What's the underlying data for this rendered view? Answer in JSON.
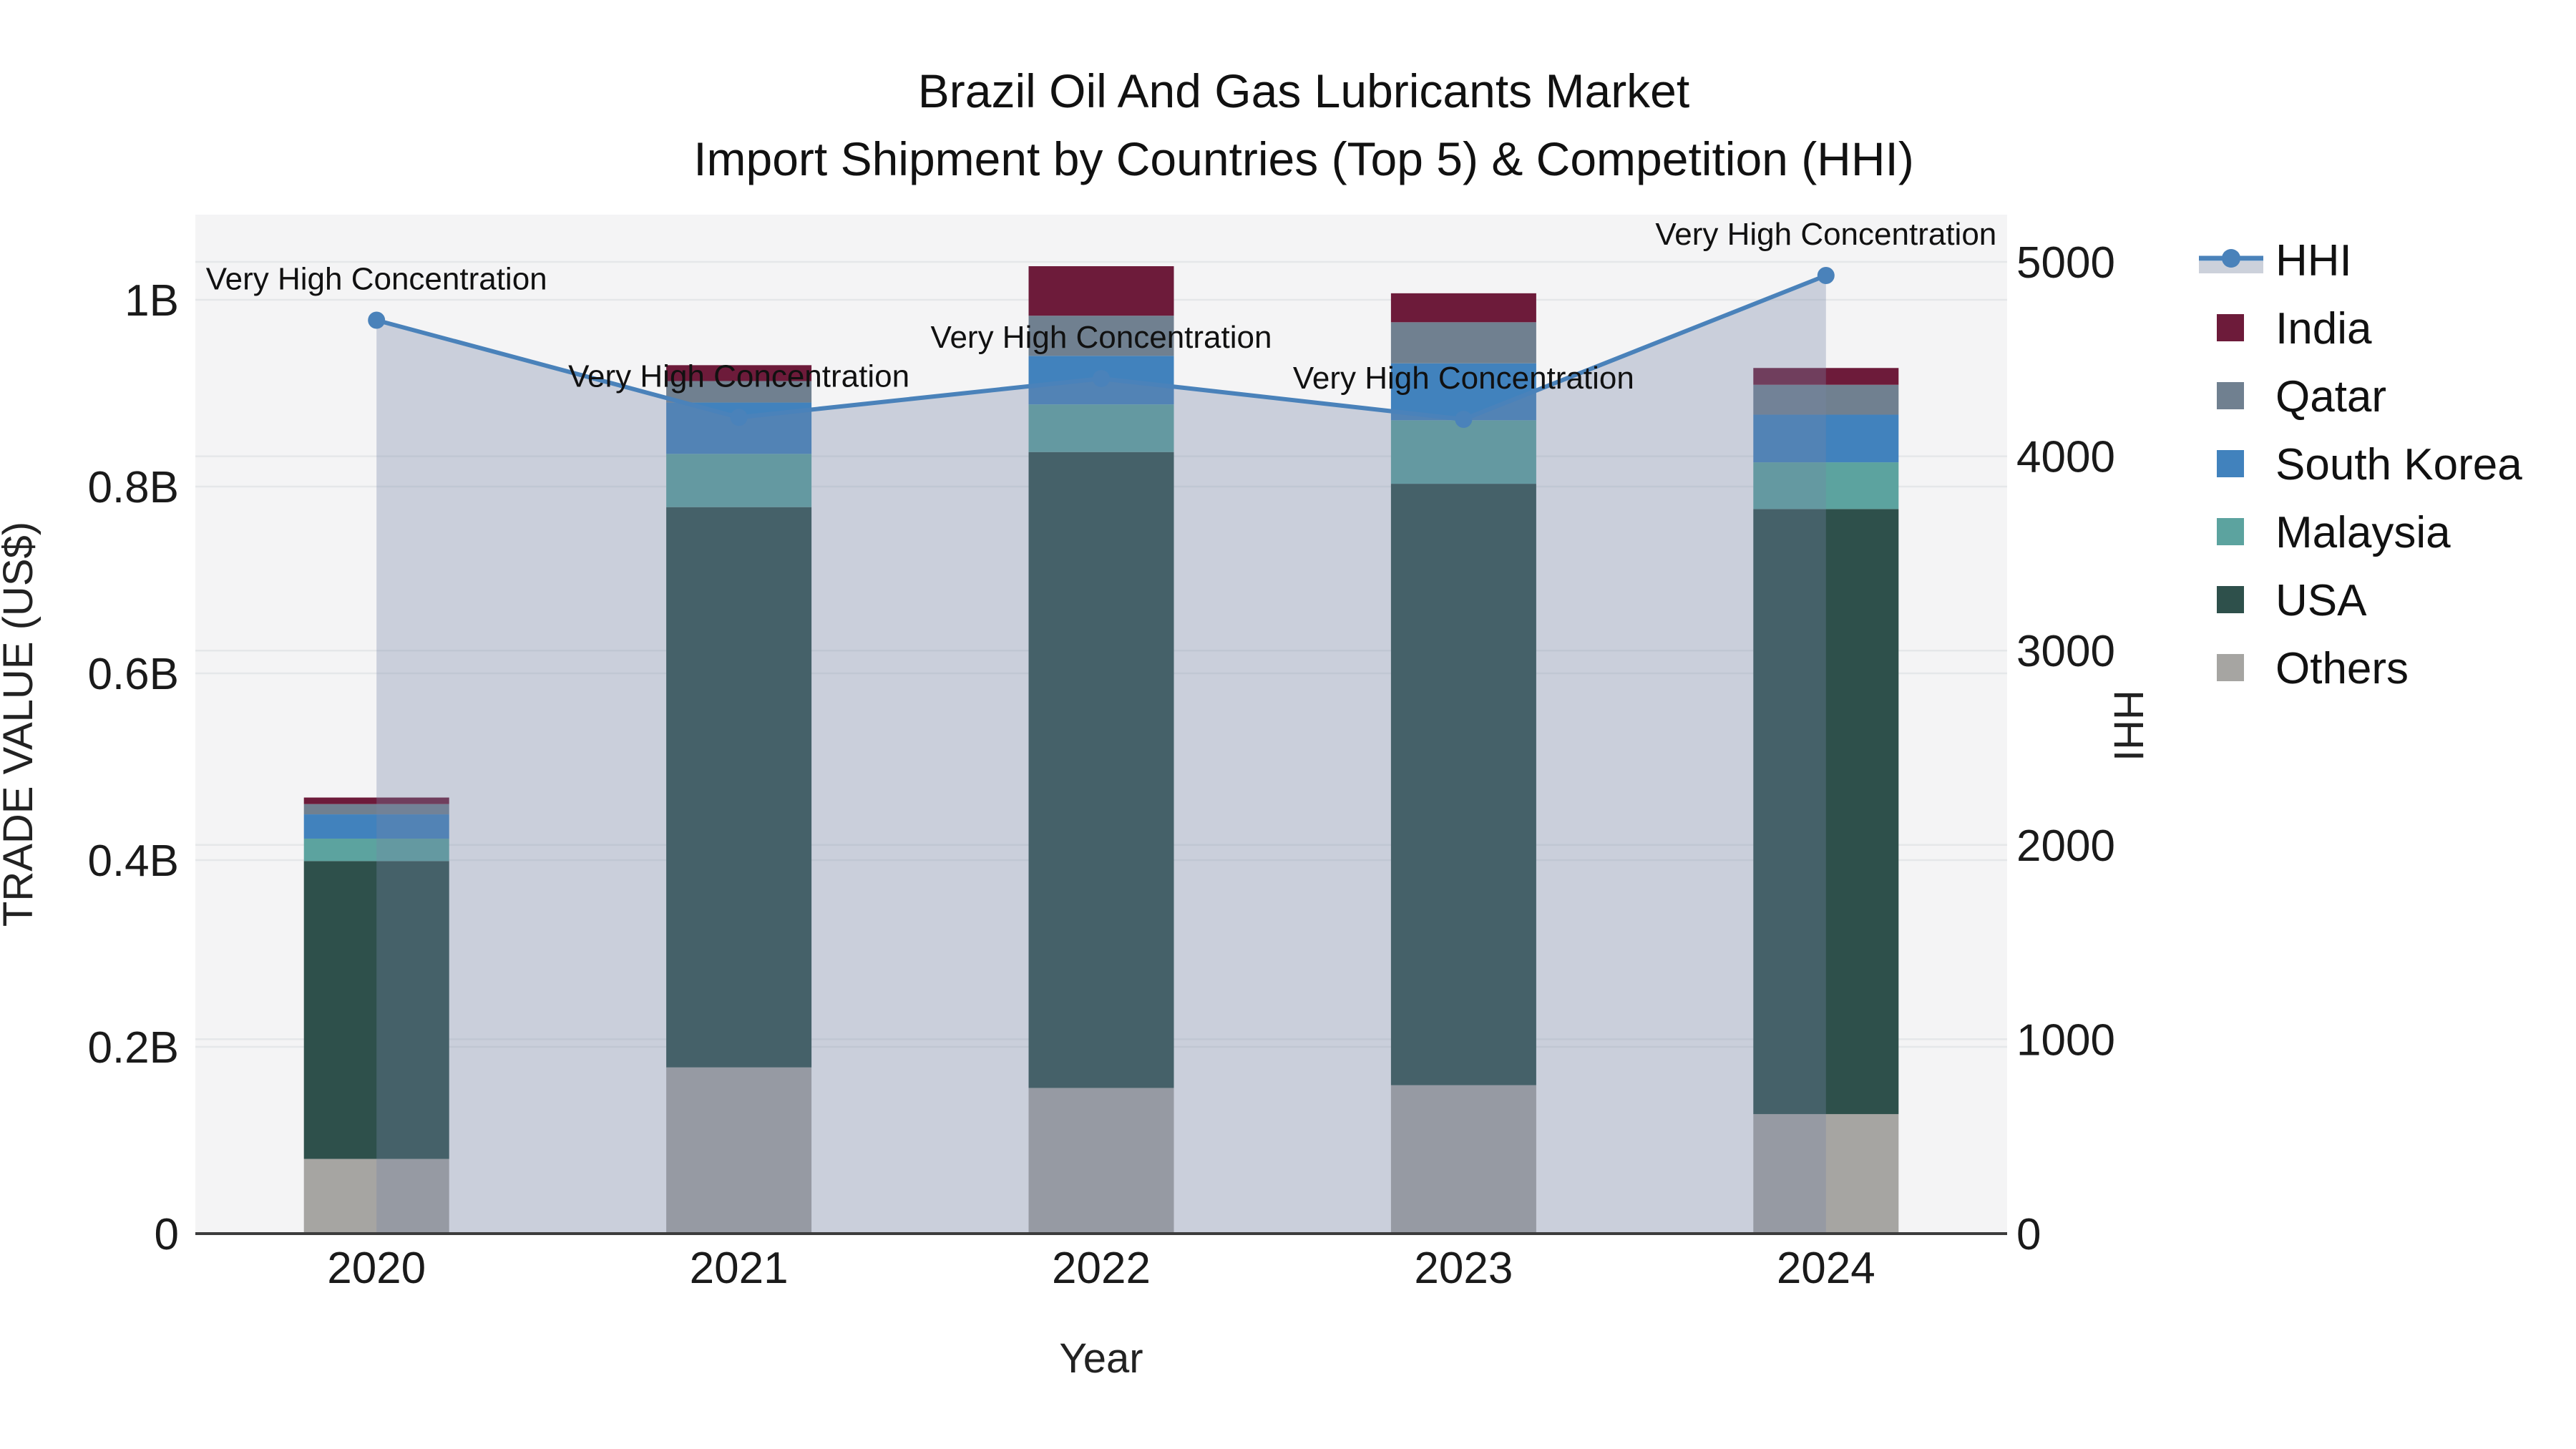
{
  "header": {
    "title_line1": "Brazil Oil And Gas Lubricants Market",
    "title_line2": "Import Shipment by Countries (Top 5) & Competition (HHI)"
  },
  "chart_data": {
    "type": "combo: stacked-bar + line(area)",
    "title": "Brazil Oil And Gas Lubricants Market Import Shipment by Countries (Top 5) & Competition (HHI)",
    "categories": [
      "2020",
      "2021",
      "2022",
      "2023",
      "2024"
    ],
    "xlabel": "Year",
    "left_axis": {
      "title": "TRADE VALUE (US$)",
      "unit": "million US$ plotted, labels in B",
      "range_musd": [
        0,
        1091
      ],
      "tick_values_musd": [
        0,
        200,
        400,
        600,
        800,
        1000
      ],
      "tick_labels": [
        "0",
        "0.2B",
        "0.4B",
        "0.6B",
        "0.8B",
        "1B"
      ],
      "grid": true
    },
    "right_axis": {
      "title": "HHI",
      "range": [
        0,
        5243
      ],
      "tick_values": [
        0,
        1000,
        2000,
        3000,
        4000,
        5000
      ],
      "tick_labels": [
        "0",
        "1000",
        "2000",
        "3000",
        "4000",
        "5000"
      ],
      "grid": true
    },
    "stack_order_bottom_to_top": [
      "Others",
      "USA",
      "Malaysia",
      "South Korea",
      "Qatar",
      "India"
    ],
    "series": [
      {
        "name": "India",
        "color": "#6d1b3a",
        "values_musd": [
          7,
          17,
          53,
          31,
          18
        ]
      },
      {
        "name": "Qatar",
        "color": "#708090",
        "values_musd": [
          11,
          23,
          43,
          44,
          32
        ]
      },
      {
        "name": "South Korea",
        "color": "#4182bd",
        "values_musd": [
          26,
          55,
          52,
          61,
          51
        ]
      },
      {
        "name": "Malaysia",
        "color": "#5ca39f",
        "values_musd": [
          24,
          57,
          51,
          68,
          50
        ]
      },
      {
        "name": "USA",
        "color": "#2e504b",
        "values_musd": [
          319,
          600,
          681,
          644,
          648
        ]
      },
      {
        "name": "Others",
        "color": "#a6a5a2",
        "values_musd": [
          80,
          178,
          156,
          159,
          128
        ]
      }
    ],
    "hhi_series": {
      "name": "HHI",
      "line_color": "#4a82ba",
      "area_fill": "rgba(118,134,168,0.33)",
      "marker": "circle",
      "values": [
        4700,
        4200,
        4400,
        4190,
        4930
      ]
    },
    "annotations": [
      {
        "category": "2020",
        "text": "Very High Concentration"
      },
      {
        "category": "2021",
        "text": "Very High Concentration"
      },
      {
        "category": "2022",
        "text": "Very High Concentration"
      },
      {
        "category": "2023",
        "text": "Very High Concentration"
      },
      {
        "category": "2024",
        "text": "Very High Concentration"
      }
    ],
    "legend": {
      "position": "right",
      "entries": [
        "HHI",
        "India",
        "Qatar",
        "South Korea",
        "Malaysia",
        "USA",
        "Others"
      ]
    },
    "plot_background": "#f4f4f5",
    "grid_color": "#e5e7e9"
  }
}
